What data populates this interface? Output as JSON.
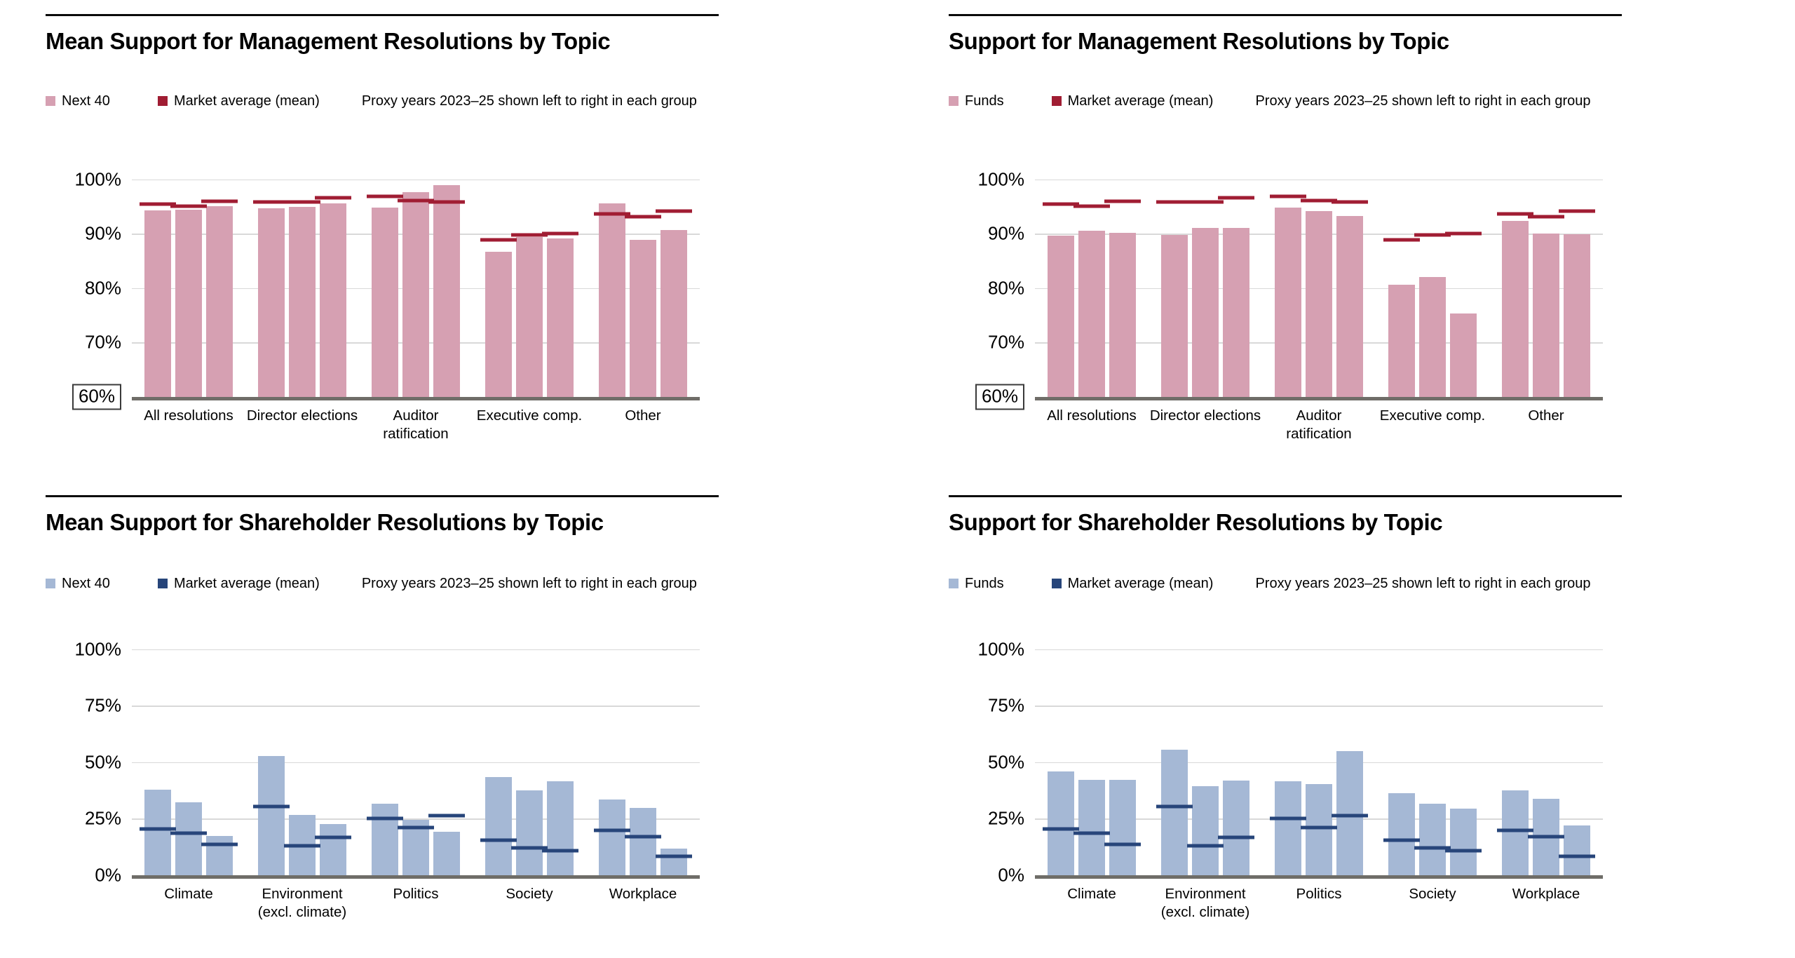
{
  "page": {
    "background": "#ffffff"
  },
  "chart_data": [
    {
      "type": "bar",
      "title": "Mean Support for Management Resolutions by Topic",
      "legend": {
        "series_label": "Next 40",
        "market_label": "Market average (mean)",
        "note": "Proxy years 2023–25 shown left to right in each group"
      },
      "colors": {
        "bar": "#D6A0B2",
        "market": "#A01D33"
      },
      "axis": {
        "min": 60,
        "max": 100,
        "ticks": [
          {
            "label": "100%",
            "value": 100,
            "boxed": false
          },
          {
            "label": "90%",
            "value": 90,
            "boxed": false
          },
          {
            "label": "80%",
            "value": 80,
            "boxed": false
          },
          {
            "label": "70%",
            "value": 70,
            "boxed": false
          },
          {
            "label": "60%",
            "value": 60,
            "boxed": true
          }
        ],
        "grid": true
      },
      "years_note": "2023, 2024, 2025 left to right",
      "groups": [
        {
          "label": "All resolutions",
          "bars": [
            94.3,
            94.4,
            95.1
          ],
          "market": [
            95.4,
            95.1,
            95.9
          ]
        },
        {
          "label": "Director elections",
          "bars": [
            94.7,
            94.9,
            95.6
          ],
          "market": [
            95.8,
            95.8,
            96.6
          ]
        },
        {
          "label": "Auditor ratification",
          "bars": [
            94.8,
            97.6,
            98.9
          ],
          "market": [
            96.9,
            96.1,
            95.8
          ]
        },
        {
          "label": "Executive comp.",
          "bars": [
            86.7,
            89.4,
            89.1
          ],
          "market": [
            88.9,
            89.8,
            90.0
          ]
        },
        {
          "label": "Other",
          "bars": [
            95.6,
            88.9,
            90.6
          ],
          "market": [
            93.6,
            93.1,
            94.2
          ]
        }
      ]
    },
    {
      "type": "bar",
      "title": "Support for Management Resolutions by Topic",
      "legend": {
        "series_label": "Funds",
        "market_label": "Market average (mean)",
        "note": "Proxy years 2023–25 shown left to right in each group"
      },
      "colors": {
        "bar": "#D6A0B2",
        "market": "#A01D33"
      },
      "axis": {
        "min": 60,
        "max": 100,
        "ticks": [
          {
            "label": "100%",
            "value": 100,
            "boxed": false
          },
          {
            "label": "90%",
            "value": 90,
            "boxed": false
          },
          {
            "label": "80%",
            "value": 80,
            "boxed": false
          },
          {
            "label": "70%",
            "value": 70,
            "boxed": false
          },
          {
            "label": "60%",
            "value": 60,
            "boxed": true
          }
        ],
        "grid": true
      },
      "years_note": "2023, 2024, 2025 left to right",
      "groups": [
        {
          "label": "All resolutions",
          "bars": [
            89.6,
            90.5,
            90.1
          ],
          "market": [
            95.4,
            95.1,
            95.9
          ]
        },
        {
          "label": "Director elections",
          "bars": [
            89.7,
            91.0,
            91.1
          ],
          "market": [
            95.8,
            95.8,
            96.6
          ]
        },
        {
          "label": "Auditor ratification",
          "bars": [
            94.8,
            94.1,
            93.3
          ],
          "market": [
            96.9,
            96.1,
            95.8
          ]
        },
        {
          "label": "Executive comp.",
          "bars": [
            80.6,
            82.0,
            75.3
          ],
          "market": [
            88.9,
            89.8,
            90.0
          ]
        },
        {
          "label": "Other",
          "bars": [
            92.3,
            90.0,
            89.9
          ],
          "market": [
            93.6,
            93.1,
            94.2
          ]
        }
      ]
    },
    {
      "type": "bar",
      "title": "Mean Support for Shareholder Resolutions by Topic",
      "legend": {
        "series_label": "Next 40",
        "market_label": "Market average (mean)",
        "note": "Proxy years 2023–25 shown left to right in each group"
      },
      "colors": {
        "bar": "#A5B8D5",
        "market": "#27457A"
      },
      "axis": {
        "min": 0,
        "max": 100,
        "ticks": [
          {
            "label": "100%",
            "value": 100,
            "boxed": false
          },
          {
            "label": "75%",
            "value": 75,
            "boxed": false
          },
          {
            "label": "50%",
            "value": 50,
            "boxed": false
          },
          {
            "label": "25%",
            "value": 25,
            "boxed": false
          },
          {
            "label": "0%",
            "value": 0,
            "boxed": false
          }
        ],
        "grid": true
      },
      "years_note": "2023, 2024, 2025 left to right",
      "groups": [
        {
          "label": "Climate",
          "bars": [
            37.7,
            32.2,
            17.3
          ],
          "market": [
            20.4,
            18.5,
            13.6
          ]
        },
        {
          "label": "Environment (excl. climate)",
          "bars": [
            52.8,
            26.6,
            22.6
          ],
          "market": [
            30.3,
            13.0,
            16.5
          ]
        },
        {
          "label": "Politics",
          "bars": [
            31.5,
            24.5,
            19.2
          ],
          "market": [
            24.9,
            21.0,
            26.3
          ]
        },
        {
          "label": "Society",
          "bars": [
            43.3,
            37.4,
            41.5
          ],
          "market": [
            15.4,
            11.9,
            10.6
          ]
        },
        {
          "label": "Workplace",
          "bars": [
            33.3,
            29.7,
            11.8
          ],
          "market": [
            19.9,
            16.9,
            8.4
          ]
        }
      ]
    },
    {
      "type": "bar",
      "title": "Support for Shareholder Resolutions by Topic",
      "legend": {
        "series_label": "Funds",
        "market_label": "Market average (mean)",
        "note": "Proxy years 2023–25 shown left to right in each group"
      },
      "colors": {
        "bar": "#A5B8D5",
        "market": "#27457A"
      },
      "axis": {
        "min": 0,
        "max": 100,
        "ticks": [
          {
            "label": "100%",
            "value": 100,
            "boxed": false
          },
          {
            "label": "75%",
            "value": 75,
            "boxed": false
          },
          {
            "label": "50%",
            "value": 50,
            "boxed": false
          },
          {
            "label": "25%",
            "value": 25,
            "boxed": false
          },
          {
            "label": "0%",
            "value": 0,
            "boxed": false
          }
        ],
        "grid": true
      },
      "years_note": "2023, 2024, 2025 left to right",
      "groups": [
        {
          "label": "Climate",
          "bars": [
            45.7,
            42.2,
            42.2
          ],
          "market": [
            20.4,
            18.5,
            13.6
          ]
        },
        {
          "label": "Environment (excl. climate)",
          "bars": [
            55.5,
            39.3,
            41.7
          ],
          "market": [
            30.3,
            13.0,
            16.5
          ]
        },
        {
          "label": "Politics",
          "bars": [
            41.5,
            40.3,
            54.9
          ],
          "market": [
            24.9,
            21.0,
            26.3
          ]
        },
        {
          "label": "Society",
          "bars": [
            36.2,
            31.6,
            29.5
          ],
          "market": [
            15.4,
            11.9,
            10.6
          ]
        },
        {
          "label": "Workplace",
          "bars": [
            37.4,
            33.7,
            21.9
          ],
          "market": [
            19.9,
            16.9,
            8.4
          ]
        }
      ]
    }
  ]
}
